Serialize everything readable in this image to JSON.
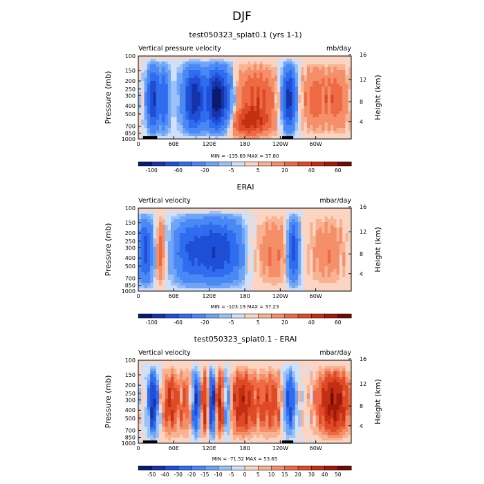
{
  "figure": {
    "title": "DJF"
  },
  "chart_data": [
    {
      "type": "heatmap",
      "title": "test050323_splat0.1 (yrs 1-1)",
      "left_label": "Vertical pressure velocity",
      "units": "mb/day",
      "xlabel": "",
      "ylabel": "Pressure (mb)",
      "ylabel_right": "Height (km)",
      "x_tick_labels": [
        "0",
        "60E",
        "120E",
        "180",
        "120W",
        "60W"
      ],
      "y_tick_labels": [
        "100",
        "150",
        "200",
        "250",
        "300",
        "400",
        "500",
        "700",
        "850",
        "1000"
      ],
      "y_right_tick_labels": [
        "16",
        "12",
        "8",
        "4"
      ],
      "stats": "MIN = -135.69   MAX =  37.80",
      "colorbar_labels": [
        "-100",
        "-60",
        "-20",
        "-5",
        "5",
        "20",
        "40",
        "60"
      ],
      "colorbar_levels": [
        -120,
        -100,
        -80,
        -60,
        -40,
        -20,
        -10,
        -5,
        0,
        5,
        10,
        20,
        30,
        40,
        50,
        60
      ],
      "xlim": [
        0,
        360
      ],
      "ylim": [
        1000,
        100
      ],
      "topography": [
        [
          8,
          32
        ],
        [
          243,
          262
        ]
      ]
    },
    {
      "type": "heatmap",
      "title": "ERAI",
      "left_label": "Vertical velocity",
      "units": "mbar/day",
      "xlabel": "",
      "ylabel": "Pressure (mb)",
      "ylabel_right": "Height (km)",
      "x_tick_labels": [
        "0",
        "60E",
        "120E",
        "180",
        "120W",
        "60W"
      ],
      "y_tick_labels": [
        "100",
        "150",
        "200",
        "250",
        "300",
        "400",
        "500",
        "700",
        "850",
        "1000"
      ],
      "y_right_tick_labels": [
        "16",
        "12",
        "8",
        "4"
      ],
      "stats": "MIN = -103.19   MAX =  37.23",
      "colorbar_labels": [
        "-100",
        "-60",
        "-20",
        "-5",
        "5",
        "20",
        "40",
        "60"
      ],
      "colorbar_levels": [
        -120,
        -100,
        -80,
        -60,
        -40,
        -20,
        -10,
        -5,
        0,
        5,
        10,
        20,
        30,
        40,
        50,
        60
      ],
      "xlim": [
        0,
        360
      ],
      "ylim": [
        1000,
        100
      ],
      "topography": []
    },
    {
      "type": "heatmap",
      "title": "test050323_splat0.1 - ERAI",
      "left_label": "Vertical velocity",
      "units": "mbar/day",
      "xlabel": "",
      "ylabel": "Pressure (mb)",
      "ylabel_right": "Height (km)",
      "x_tick_labels": [
        "0",
        "60E",
        "120E",
        "180",
        "120W",
        "60W"
      ],
      "y_tick_labels": [
        "100",
        "150",
        "200",
        "250",
        "300",
        "400",
        "500",
        "700",
        "850",
        "1000"
      ],
      "y_right_tick_labels": [
        "16",
        "12",
        "8",
        "4"
      ],
      "stats": "MIN = -71.52   MAX =  53.65",
      "colorbar_labels": [
        "-50",
        "-40",
        "-30",
        "-20",
        "-15",
        "-10",
        "-5",
        "0",
        "5",
        "10",
        "15",
        "20",
        "30",
        "40",
        "50"
      ],
      "colorbar_levels": [
        -60,
        -50,
        -40,
        -30,
        -20,
        -15,
        -10,
        -5,
        0,
        5,
        10,
        15,
        20,
        30,
        40,
        50
      ],
      "xlim": [
        0,
        360
      ],
      "ylim": [
        1000,
        100
      ],
      "topography": [
        [
          8,
          32
        ],
        [
          243,
          262
        ]
      ]
    }
  ],
  "colors": {
    "palette": [
      "#0a1a6e",
      "#1733a8",
      "#1f4fd6",
      "#2f6cf0",
      "#4a88f5",
      "#6fa4f6",
      "#9cc2f5",
      "#cfe0f7",
      "#fbd5c2",
      "#f8b393",
      "#f48f6a",
      "#ed6a45",
      "#de4a26",
      "#c42f13",
      "#9e1a0a",
      "#6e0c04"
    ],
    "topography": "#000000"
  }
}
